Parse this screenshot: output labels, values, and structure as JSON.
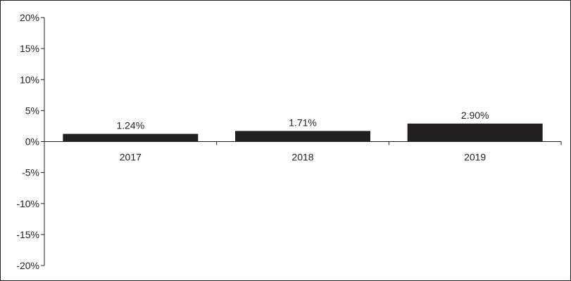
{
  "chart_data": {
    "type": "bar",
    "categories": [
      "2017",
      "2018",
      "2019"
    ],
    "values": [
      1.24,
      1.71,
      2.9
    ],
    "data_labels": [
      "1.24%",
      "1.71%",
      "2.90%"
    ],
    "ylim": [
      -20,
      20
    ],
    "yticks": [
      20,
      15,
      10,
      5,
      0,
      -5,
      -10,
      -15,
      -20
    ],
    "ytick_labels": [
      "20%",
      "15%",
      "10%",
      "5%",
      "0%",
      "-5%",
      "-10%",
      "-15%",
      "-20%"
    ],
    "grid": false,
    "legend": "none",
    "bar_color": "#231f20"
  }
}
